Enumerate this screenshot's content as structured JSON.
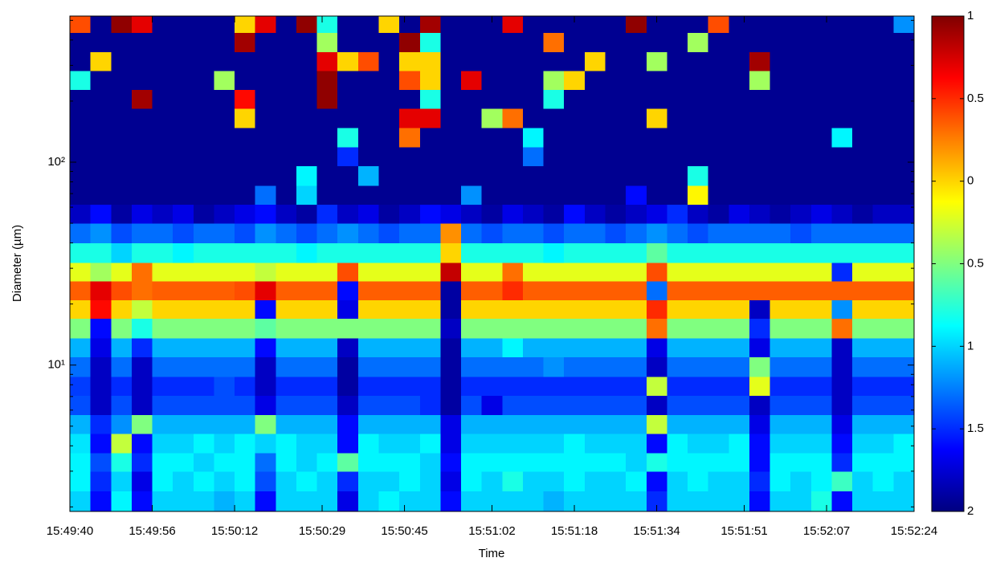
{
  "chart_data": {
    "type": "heatmap",
    "xlabel": "Time",
    "ylabel": "Diameter (µm)",
    "x": [
      "15:49:40",
      "15:49:44",
      "15:49:48",
      "15:49:52",
      "15:49:56",
      "15:50:00",
      "15:50:04",
      "15:50:08",
      "15:50:12",
      "15:50:16",
      "15:50:20",
      "15:50:24",
      "15:50:28",
      "15:50:32",
      "15:50:36",
      "15:50:40",
      "15:50:44",
      "15:50:48",
      "15:50:52",
      "15:50:56",
      "15:51:00",
      "15:51:04",
      "15:51:08",
      "15:51:12",
      "15:51:16",
      "15:51:20",
      "15:51:24",
      "15:51:28",
      "15:51:32",
      "15:51:36",
      "15:51:40",
      "15:51:44",
      "15:51:48",
      "15:51:52",
      "15:51:56",
      "15:52:00",
      "15:52:04",
      "15:52:08",
      "15:52:12",
      "15:52:16",
      "15:52:20"
    ],
    "xlim": [
      "15:49:40",
      "15:52:24"
    ],
    "xticks": [
      "15:49:40",
      "15:49:56",
      "15:50:12",
      "15:50:29",
      "15:50:45",
      "15:51:02",
      "15:51:18",
      "15:51:34",
      "15:51:51",
      "15:52:07",
      "15:52:24"
    ],
    "y_bins": [
      1.9,
      2.4,
      3,
      3.7,
      4.6,
      5.7,
      7.1,
      8.8,
      11,
      13.6,
      17,
      21,
      26,
      32,
      40,
      50,
      62,
      77,
      96,
      119,
      148,
      184,
      228,
      283,
      351,
      435,
      525
    ],
    "ylim": [
      1.9,
      525
    ],
    "log_y": true,
    "yticks": [
      {
        "value": 10,
        "label": "10¹"
      },
      {
        "value": 100,
        "label": "10²"
      }
    ],
    "yminor": [
      2,
      3,
      4,
      5,
      6,
      7,
      8,
      9,
      20,
      30,
      40,
      50,
      60,
      70,
      80,
      90,
      200,
      300,
      400,
      500
    ],
    "colormap": "jet",
    "clim": [
      -2,
      1
    ],
    "cticks": [
      1,
      0.5,
      0,
      {
        "value": -0.5,
        "label": "0.5"
      },
      {
        "value": -1,
        "label": "1"
      },
      {
        "value": -1.5,
        "label": "1.5"
      },
      {
        "value": -2,
        "label": "2"
      }
    ],
    "values": [
      [
        -1.0,
        -1.6,
        -0.9,
        -1.6,
        -1.0,
        -1.0,
        -1.0,
        -1.1,
        -1.0,
        -1.6,
        -1.0,
        -1.0,
        -1.0,
        -1.7,
        -1.0,
        -0.9,
        -1.0,
        -1.0,
        -1.6,
        -1.0,
        -1.0,
        -1.0,
        -1.0,
        -1.1,
        -1.0,
        -1.0,
        -1.0,
        -1.0,
        -1.5,
        -1.0,
        -1.0,
        -1.0,
        -1.0,
        -1.6,
        -1.0,
        -1.0,
        -0.8,
        -1.6,
        -1.0,
        -1.0,
        -1.0
      ],
      [
        -0.9,
        -1.5,
        -1.0,
        -1.7,
        -0.9,
        -1.0,
        -0.9,
        -1.0,
        -0.9,
        -1.4,
        -1.0,
        -0.9,
        -1.0,
        -1.5,
        -1.0,
        -1.0,
        -0.9,
        -1.0,
        -1.7,
        -0.9,
        -1.0,
        -0.8,
        -1.0,
        -1.0,
        -0.9,
        -1.0,
        -1.0,
        -0.9,
        -1.6,
        -1.0,
        -0.9,
        -1.0,
        -1.0,
        -1.5,
        -0.9,
        -1.0,
        -0.9,
        -0.7,
        -1.0,
        -0.9,
        -1.0
      ],
      [
        -0.9,
        -1.4,
        -0.8,
        -1.5,
        -0.9,
        -0.9,
        -1.0,
        -0.9,
        -0.9,
        -1.3,
        -0.9,
        -1.0,
        -0.9,
        -0.6,
        -0.9,
        -0.9,
        -0.9,
        -1.0,
        -1.6,
        -0.9,
        -0.9,
        -0.9,
        -0.9,
        -0.9,
        -0.9,
        -0.9,
        -0.9,
        -1.0,
        -0.8,
        -0.9,
        -0.9,
        -0.9,
        -0.9,
        -1.6,
        -0.9,
        -0.9,
        -0.9,
        -1.5,
        -0.9,
        -0.9,
        -0.9
      ],
      [
        -0.95,
        -1.6,
        -0.3,
        -1.6,
        -1.0,
        -1.0,
        -0.9,
        -1.0,
        -0.9,
        -1.0,
        -0.9,
        -1.0,
        -1.0,
        -1.6,
        -0.9,
        -1.0,
        -1.0,
        -0.9,
        -1.7,
        -1.0,
        -1.0,
        -1.0,
        -1.0,
        -1.0,
        -0.9,
        -1.0,
        -1.0,
        -1.0,
        -1.6,
        -0.9,
        -1.0,
        -1.0,
        -0.9,
        -1.6,
        -1.0,
        -1.0,
        -1.0,
        -1.6,
        -1.0,
        -1.0,
        -0.9
      ],
      [
        -1.1,
        -1.5,
        -1.2,
        -0.5,
        -1.1,
        -1.1,
        -1.1,
        -1.1,
        -1.1,
        -0.5,
        -1.1,
        -1.1,
        -1.1,
        -1.6,
        -1.1,
        -1.1,
        -1.1,
        -1.1,
        -1.7,
        -1.1,
        -1.1,
        -1.1,
        -1.1,
        -1.1,
        -1.1,
        -1.1,
        -1.1,
        -1.1,
        -0.3,
        -1.1,
        -1.1,
        -1.1,
        -1.1,
        -1.7,
        -1.1,
        -1.1,
        -1.1,
        -1.7,
        -1.1,
        -1.1,
        -1.1
      ],
      [
        -1.4,
        -1.8,
        -1.4,
        -1.8,
        -1.4,
        -1.4,
        -1.4,
        -1.4,
        -1.4,
        -1.7,
        -1.4,
        -1.4,
        -1.4,
        -1.8,
        -1.4,
        -1.4,
        -1.4,
        -1.5,
        -1.9,
        -1.4,
        -1.7,
        -1.4,
        -1.4,
        -1.4,
        -1.4,
        -1.4,
        -1.4,
        -1.4,
        -1.8,
        -1.4,
        -1.4,
        -1.4,
        -1.4,
        -1.8,
        -1.4,
        -1.4,
        -1.4,
        -1.8,
        -1.4,
        -1.4,
        -1.4
      ],
      [
        -1.45,
        -1.8,
        -1.5,
        -1.8,
        -1.5,
        -1.5,
        -1.5,
        -1.4,
        -1.5,
        -1.8,
        -1.5,
        -1.5,
        -1.5,
        -1.9,
        -1.5,
        -1.5,
        -1.5,
        -1.5,
        -1.9,
        -1.5,
        -1.5,
        -1.5,
        -1.5,
        -1.5,
        -1.5,
        -1.5,
        -1.5,
        -1.5,
        -0.3,
        -1.5,
        -1.5,
        -1.5,
        -1.5,
        -0.2,
        -1.5,
        -1.5,
        -1.5,
        -1.8,
        -1.5,
        -1.5,
        -1.5
      ],
      [
        -1.3,
        -1.8,
        -1.3,
        -1.8,
        -1.3,
        -1.3,
        -1.3,
        -1.3,
        -1.3,
        -1.8,
        -1.3,
        -1.3,
        -1.3,
        -1.9,
        -1.3,
        -1.3,
        -1.3,
        -1.3,
        -1.9,
        -1.3,
        -1.3,
        -1.3,
        -1.3,
        -1.2,
        -1.3,
        -1.3,
        -1.3,
        -1.3,
        -1.8,
        -1.3,
        -1.3,
        -1.3,
        -1.3,
        -0.5,
        -1.3,
        -1.3,
        -1.3,
        -1.8,
        -1.3,
        -1.3,
        -1.3
      ],
      [
        -1.1,
        -1.7,
        -1.1,
        -1.5,
        -1.1,
        -1.1,
        -1.1,
        -1.1,
        -1.1,
        -1.6,
        -1.1,
        -1.1,
        -1.1,
        -1.8,
        -1.1,
        -1.1,
        -1.1,
        -1.1,
        -1.9,
        -1.1,
        -1.1,
        -0.9,
        -1.1,
        -1.1,
        -1.1,
        -1.1,
        -1.1,
        -1.1,
        -1.7,
        -1.1,
        -1.1,
        -1.1,
        -1.1,
        -1.7,
        -1.1,
        -1.1,
        -1.1,
        -1.8,
        -1.1,
        -1.1,
        -1.1
      ],
      [
        -0.5,
        -1.6,
        -0.5,
        -0.8,
        -0.5,
        -0.5,
        -0.5,
        -0.5,
        -0.5,
        -0.6,
        -0.5,
        -0.5,
        -0.5,
        -0.5,
        -0.5,
        -0.5,
        -0.5,
        -0.5,
        -1.8,
        -0.5,
        -0.5,
        -0.5,
        -0.5,
        -0.5,
        -0.5,
        -0.5,
        -0.5,
        -0.5,
        0.3,
        -0.5,
        -0.5,
        -0.5,
        -0.5,
        -1.5,
        -0.5,
        -0.5,
        -0.5,
        0.3,
        -0.5,
        -0.5,
        -0.5
      ],
      [
        0.0,
        0.6,
        0.0,
        -0.3,
        0.0,
        0.0,
        0.0,
        0.0,
        0.0,
        -1.6,
        0.0,
        0.0,
        0.0,
        -1.7,
        0.0,
        0.0,
        0.0,
        0.0,
        -1.9,
        0.0,
        0.0,
        0.0,
        0.0,
        0.0,
        0.0,
        0.0,
        0.0,
        0.0,
        0.5,
        0.0,
        0.0,
        0.0,
        0.0,
        -1.8,
        0.0,
        0.0,
        0.0,
        -1.2,
        0.0,
        0.0,
        0.0
      ],
      [
        0.35,
        0.7,
        0.4,
        0.3,
        0.35,
        0.35,
        0.35,
        0.35,
        0.4,
        0.7,
        0.35,
        0.35,
        0.35,
        -1.6,
        0.35,
        0.35,
        0.35,
        0.35,
        -1.9,
        0.35,
        0.35,
        0.5,
        0.35,
        0.35,
        0.35,
        0.35,
        0.35,
        0.35,
        -1.3,
        0.35,
        0.35,
        0.35,
        0.35,
        0.35,
        0.35,
        0.35,
        0.35,
        0.35,
        0.35,
        0.35,
        0.35
      ],
      [
        -0.2,
        -0.4,
        -0.2,
        0.3,
        -0.2,
        -0.2,
        -0.2,
        -0.2,
        -0.2,
        -0.3,
        -0.2,
        -0.2,
        -0.2,
        0.4,
        -0.2,
        -0.2,
        -0.2,
        -0.2,
        0.8,
        -0.2,
        -0.2,
        0.3,
        -0.2,
        -0.2,
        -0.2,
        -0.2,
        -0.2,
        -0.2,
        0.4,
        -0.2,
        -0.2,
        -0.2,
        -0.2,
        -0.2,
        -0.2,
        -0.2,
        -0.2,
        -1.5,
        -0.2,
        -0.2,
        -0.2
      ],
      [
        -0.8,
        -0.8,
        -1.0,
        -0.8,
        -0.8,
        -0.9,
        -0.8,
        -0.8,
        -0.8,
        -0.8,
        -0.8,
        -0.9,
        -0.8,
        -0.8,
        -0.8,
        -0.8,
        -0.8,
        -0.8,
        0.0,
        -0.8,
        -0.8,
        -0.8,
        -0.8,
        -0.9,
        -0.8,
        -0.8,
        -0.8,
        -0.8,
        -0.6,
        -0.8,
        -0.8,
        -0.8,
        -0.8,
        -0.8,
        -0.8,
        -0.8,
        -0.8,
        -0.8,
        -0.8,
        -0.8,
        -0.8
      ],
      [
        -1.3,
        -1.2,
        -1.4,
        -1.3,
        -1.3,
        -1.4,
        -1.3,
        -1.3,
        -1.4,
        -1.2,
        -1.3,
        -1.4,
        -1.3,
        -1.2,
        -1.3,
        -1.4,
        -1.3,
        -1.3,
        0.2,
        -1.3,
        -1.4,
        -1.3,
        -1.3,
        -1.4,
        -1.3,
        -1.3,
        -1.4,
        -1.3,
        -1.2,
        -1.3,
        -1.4,
        -1.3,
        -1.3,
        -1.3,
        -1.3,
        -1.4,
        -1.3,
        -1.3,
        -1.3,
        -1.3,
        -1.3
      ],
      [
        -1.8,
        -1.6,
        -1.9,
        -1.7,
        -1.8,
        -1.7,
        -1.9,
        -1.8,
        -1.7,
        -1.6,
        -1.8,
        -1.9,
        -1.5,
        -1.8,
        -1.7,
        -1.9,
        -1.8,
        -1.6,
        -1.7,
        -1.8,
        -1.9,
        -1.7,
        -1.8,
        -1.9,
        -1.6,
        -1.8,
        -1.9,
        -1.8,
        -1.7,
        -1.5,
        -1.8,
        -1.9,
        -1.7,
        -1.8,
        -1.9,
        -1.8,
        -1.7,
        -1.8,
        -1.9,
        -1.8,
        -1.8
      ],
      [
        -1.95,
        -1.95,
        -1.95,
        -1.95,
        -1.95,
        -1.95,
        -1.95,
        -1.95,
        -1.95,
        -1.3,
        -1.95,
        -1.0,
        -1.95,
        -1.95,
        -1.95,
        -1.95,
        -1.95,
        -1.95,
        -1.95,
        -1.2,
        -1.95,
        -1.95,
        -1.95,
        -1.95,
        -1.95,
        -1.95,
        -1.95,
        -1.6,
        -1.95,
        -1.95,
        -0.1,
        -1.95,
        -1.95,
        -1.95,
        -1.95,
        -1.95,
        -1.95,
        -1.95,
        -1.95,
        -1.95,
        -1.95
      ],
      [
        -1.95,
        -1.95,
        -1.95,
        -1.95,
        -1.95,
        -1.95,
        -1.95,
        -1.95,
        -1.95,
        -1.95,
        -1.95,
        -0.9,
        -1.95,
        -1.95,
        -1.1,
        -1.95,
        -1.95,
        -1.95,
        -1.95,
        -1.95,
        -1.95,
        -1.95,
        -1.95,
        -1.95,
        -1.95,
        -1.95,
        -1.95,
        -1.95,
        -1.95,
        -1.95,
        -0.8,
        -1.95,
        -1.95,
        -1.95,
        -1.95,
        -1.95,
        -1.95,
        -1.95,
        -1.95,
        -1.95,
        -1.95
      ],
      [
        -1.95,
        -1.95,
        -1.95,
        -1.95,
        -1.95,
        -1.95,
        -1.95,
        -1.95,
        -1.95,
        -1.95,
        -1.95,
        -1.95,
        -1.95,
        -1.5,
        -1.95,
        -1.95,
        -1.95,
        -1.95,
        -1.95,
        -1.95,
        -1.95,
        -1.95,
        -1.3,
        -1.95,
        -1.95,
        -1.95,
        -1.95,
        -1.95,
        -1.95,
        -1.95,
        -1.95,
        -1.95,
        -1.95,
        -1.95,
        -1.95,
        -1.95,
        -1.95,
        -1.95,
        -1.95,
        -1.95,
        -1.95
      ],
      [
        -1.95,
        -1.95,
        -1.95,
        -1.95,
        -1.95,
        -1.95,
        -1.95,
        -1.95,
        -1.95,
        -1.95,
        -1.95,
        -1.95,
        -1.95,
        -0.8,
        -1.95,
        -1.95,
        0.3,
        -1.95,
        -1.95,
        -1.95,
        -1.95,
        -1.95,
        -0.9,
        -1.95,
        -1.95,
        -1.95,
        -1.95,
        -1.95,
        -1.95,
        -1.95,
        -1.95,
        -1.95,
        -1.95,
        -1.95,
        -1.95,
        -1.95,
        -1.95,
        -0.9,
        -1.95,
        -1.95,
        -1.95
      ],
      [
        -1.95,
        -1.95,
        -1.95,
        -1.95,
        -1.95,
        -1.95,
        -1.95,
        -1.95,
        0.0,
        -1.95,
        -1.95,
        -1.95,
        -1.95,
        -1.95,
        -1.95,
        -1.95,
        0.7,
        0.7,
        -1.95,
        -1.95,
        -0.4,
        0.3,
        -1.95,
        -1.95,
        -1.95,
        -1.95,
        -1.95,
        -1.95,
        0.0,
        -1.95,
        -1.95,
        -1.95,
        -1.95,
        -1.95,
        -1.95,
        -1.95,
        -1.95,
        -1.95,
        -1.95,
        -1.95,
        -1.95
      ],
      [
        -1.95,
        -1.95,
        -1.95,
        0.9,
        -1.95,
        -1.95,
        -1.95,
        -1.95,
        0.6,
        -1.95,
        -1.95,
        -1.95,
        0.95,
        -1.95,
        -1.95,
        -1.95,
        -1.95,
        -0.8,
        -1.95,
        -1.95,
        -1.95,
        -1.95,
        -1.95,
        -0.8,
        -1.95,
        -1.95,
        -1.95,
        -1.95,
        -1.95,
        -1.95,
        -1.95,
        -1.95,
        -1.95,
        -1.95,
        -1.95,
        -1.95,
        -1.95,
        -1.95,
        -1.95,
        -1.95,
        -1.95
      ],
      [
        -0.8,
        -1.95,
        -1.95,
        -1.95,
        -1.95,
        -1.95,
        -1.95,
        -0.4,
        -1.95,
        -1.95,
        -1.95,
        -1.95,
        0.95,
        -1.95,
        -1.95,
        -1.95,
        0.4,
        0.0,
        -1.95,
        0.7,
        -1.95,
        -1.95,
        -1.95,
        -0.4,
        0.0,
        -1.95,
        -1.95,
        -1.95,
        -1.95,
        -1.95,
        -1.95,
        -1.95,
        -1.95,
        -0.4,
        -1.95,
        -1.95,
        -1.95,
        -1.95,
        -1.95,
        -1.95,
        -1.95
      ],
      [
        -1.95,
        0.0,
        -1.95,
        -1.95,
        -1.95,
        -1.95,
        -1.95,
        -1.95,
        -1.95,
        -1.95,
        -1.95,
        -1.95,
        0.7,
        0.0,
        0.4,
        -1.95,
        0.0,
        0.0,
        -1.95,
        -1.95,
        -1.95,
        -1.95,
        -1.95,
        -1.95,
        -1.95,
        0.0,
        -1.95,
        -1.95,
        -0.4,
        -1.95,
        -1.95,
        -1.95,
        -1.95,
        0.9,
        -1.95,
        -1.95,
        -1.95,
        -1.95,
        -1.95,
        -1.95,
        -1.95
      ],
      [
        -1.95,
        -1.95,
        -1.95,
        -1.95,
        -1.95,
        -1.95,
        -1.95,
        -1.95,
        0.9,
        -1.95,
        -1.95,
        -1.95,
        -0.4,
        -1.95,
        -1.95,
        -1.95,
        0.95,
        -0.8,
        -1.95,
        -1.95,
        -1.95,
        -1.95,
        -1.95,
        0.3,
        -1.95,
        -1.95,
        -1.95,
        -1.95,
        -1.95,
        -1.95,
        -0.4,
        -1.95,
        -1.95,
        -1.95,
        -1.95,
        -1.95,
        -1.95,
        -1.95,
        -1.95,
        -1.95,
        -1.95
      ],
      [
        0.4,
        -1.95,
        0.95,
        0.7,
        -1.95,
        -1.95,
        -1.95,
        -1.95,
        0.0,
        0.7,
        -1.95,
        0.95,
        -0.8,
        -1.95,
        -1.95,
        0.0,
        -1.95,
        0.9,
        -1.95,
        -1.95,
        -1.95,
        0.7,
        -1.95,
        -1.95,
        -1.95,
        -1.95,
        -1.95,
        0.95,
        -1.95,
        -1.95,
        -1.95,
        0.4,
        -1.95,
        -1.95,
        -1.95,
        -1.95,
        -1.95,
        -1.95,
        -1.95,
        -1.95,
        -1.2
      ]
    ]
  }
}
